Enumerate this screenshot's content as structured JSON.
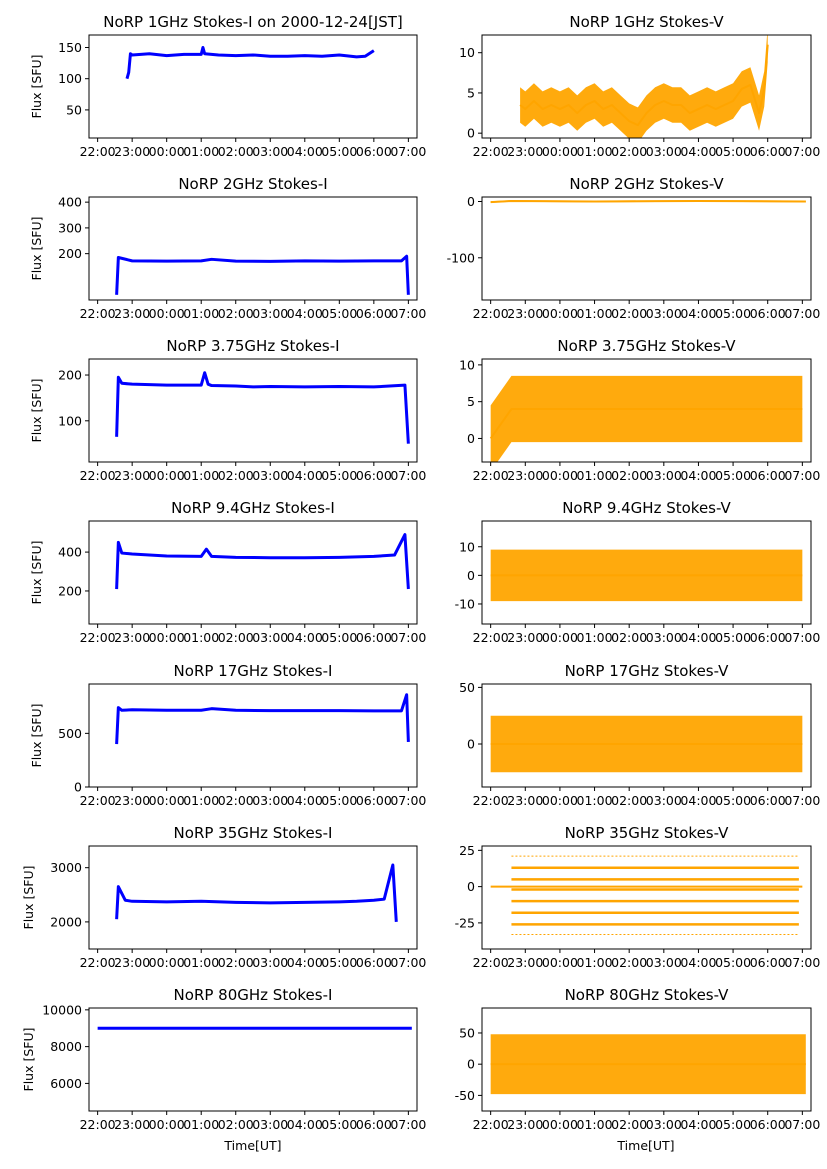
{
  "figure": {
    "xlabel": "Time[UT]",
    "x_ticks": [
      "22:00",
      "23:00",
      "00:00",
      "01:00",
      "02:00",
      "03:00",
      "04:00",
      "05:00",
      "06:00",
      "07:00"
    ],
    "colors": {
      "stokes_i": "#0000ff",
      "stokes_v": "#ffa500",
      "axes": "#000000"
    }
  },
  "chart_data": [
    {
      "type": "line",
      "title": "NoRP 1GHz Stokes-I on 2000-12-24[JST]",
      "ylabel": "Flux [SFU]",
      "xrange": [
        21.75,
        31.25
      ],
      "ylim": [
        5,
        170
      ],
      "yticks": [
        50,
        100,
        150
      ],
      "series": [
        {
          "color": "#0000ff",
          "x": [
            22.85,
            22.9,
            22.95,
            23.0,
            23.5,
            24.0,
            24.5,
            25.0,
            25.05,
            25.1,
            25.5,
            26.0,
            26.5,
            27.0,
            27.5,
            28.0,
            28.5,
            29.0,
            29.5,
            29.75,
            30.0
          ],
          "y": [
            100,
            110,
            140,
            138,
            140,
            137,
            139,
            139,
            150,
            140,
            138,
            137,
            138,
            136,
            136,
            137,
            136,
            138,
            135,
            136,
            145
          ]
        }
      ]
    },
    {
      "type": "line",
      "title": "NoRP 1GHz Stokes-V",
      "ylabel": "",
      "xrange": [
        21.75,
        31.25
      ],
      "ylim": [
        -0.6,
        12.2
      ],
      "yticks": [
        0,
        5,
        10
      ],
      "series": [
        {
          "color": "#ffa500",
          "x": [
            22.85,
            23.0,
            23.25,
            23.5,
            23.75,
            24.0,
            24.25,
            24.5,
            24.75,
            25.0,
            25.25,
            25.5,
            25.75,
            26.0,
            26.25,
            26.5,
            26.75,
            27.0,
            27.25,
            27.5,
            27.75,
            28.0,
            28.25,
            28.5,
            28.75,
            29.0,
            29.25,
            29.5,
            29.75,
            29.9,
            30.0
          ],
          "y": [
            3.5,
            3.0,
            4.0,
            3.0,
            3.5,
            3.0,
            3.5,
            2.5,
            3.5,
            4.0,
            3.0,
            3.5,
            2.5,
            1.5,
            1.0,
            2.5,
            3.5,
            4.0,
            3.5,
            3.5,
            2.5,
            3.0,
            3.5,
            3.0,
            3.5,
            4.0,
            5.5,
            6.0,
            2.5,
            5.5,
            11.0
          ]
        }
      ]
    },
    {
      "type": "line",
      "title": "NoRP 2GHz Stokes-I",
      "ylabel": "Flux [SFU]",
      "xrange": [
        21.75,
        31.25
      ],
      "ylim": [
        20,
        420
      ],
      "yticks": [
        200,
        300,
        400
      ],
      "series": [
        {
          "color": "#0000ff",
          "x": [
            22.55,
            22.6,
            23.0,
            24.0,
            25.0,
            25.3,
            26.0,
            27.0,
            28.0,
            29.0,
            30.0,
            30.8,
            30.95,
            31.0
          ],
          "y": [
            40,
            185,
            172,
            171,
            172,
            178,
            171,
            170,
            172,
            171,
            172,
            172,
            190,
            40
          ]
        }
      ]
    },
    {
      "type": "line",
      "title": "NoRP 2GHz Stokes-V",
      "ylabel": "",
      "xrange": [
        21.75,
        31.25
      ],
      "ylim": [
        -175,
        8
      ],
      "yticks": [
        0,
        -100
      ],
      "series": [
        {
          "color": "#ffa500",
          "x": [
            22.0,
            22.6,
            25.0,
            28.0,
            31.1
          ],
          "y": [
            -1,
            1,
            0,
            1,
            0
          ]
        }
      ]
    },
    {
      "type": "line",
      "title": "NoRP 3.75GHz Stokes-I",
      "ylabel": "Flux [SFU]",
      "xrange": [
        21.75,
        31.25
      ],
      "ylim": [
        10,
        235
      ],
      "yticks": [
        100,
        200
      ],
      "series": [
        {
          "color": "#0000ff",
          "x": [
            22.55,
            22.6,
            22.7,
            23.0,
            24.0,
            25.0,
            25.1,
            25.2,
            25.3,
            26.0,
            26.5,
            27.0,
            28.0,
            29.0,
            30.0,
            30.9,
            31.0
          ],
          "y": [
            65,
            195,
            182,
            180,
            178,
            178,
            205,
            180,
            177,
            176,
            174,
            175,
            174,
            175,
            174,
            178,
            50
          ]
        }
      ]
    },
    {
      "type": "line",
      "title": "NoRP 3.75GHz Stokes-V",
      "ylabel": "",
      "xrange": [
        21.75,
        31.25
      ],
      "ylim": [
        -3.2,
        10.8
      ],
      "yticks": [
        0,
        5,
        10
      ],
      "series": [
        {
          "color": "#ffa500",
          "x": [
            22.0,
            22.6,
            23.0,
            24.0,
            25.0,
            26.0,
            27.0,
            28.0,
            29.0,
            30.0,
            31.0
          ],
          "y": [
            0,
            4,
            4,
            4,
            4,
            4,
            4,
            4,
            4,
            4,
            4
          ]
        }
      ]
    },
    {
      "type": "line",
      "title": "NoRP 9.4GHz Stokes-I",
      "ylabel": "Flux [SFU]",
      "xrange": [
        21.75,
        31.25
      ],
      "ylim": [
        30,
        560
      ],
      "yticks": [
        200,
        400
      ],
      "series": [
        {
          "color": "#0000ff",
          "x": [
            22.55,
            22.6,
            22.7,
            23.0,
            24.0,
            25.0,
            25.15,
            25.3,
            26.0,
            27.0,
            28.0,
            29.0,
            30.0,
            30.6,
            30.9,
            31.0
          ],
          "y": [
            210,
            450,
            395,
            390,
            380,
            378,
            415,
            378,
            373,
            371,
            371,
            373,
            378,
            385,
            490,
            210
          ]
        }
      ]
    },
    {
      "type": "line",
      "title": "NoRP 9.4GHz Stokes-V",
      "ylabel": "",
      "xrange": [
        21.75,
        31.25
      ],
      "ylim": [
        -17,
        19
      ],
      "yticks": [
        -10,
        0,
        10
      ],
      "series": [
        {
          "color": "#ffa500",
          "x": [
            22.0,
            22.6,
            24.0,
            26.0,
            28.0,
            31.0
          ],
          "y": [
            0,
            0,
            0,
            0,
            0,
            0
          ]
        }
      ]
    },
    {
      "type": "line",
      "title": "NoRP 17GHz Stokes-I",
      "ylabel": "Flux [SFU]",
      "xrange": [
        21.75,
        31.25
      ],
      "ylim": [
        0,
        960
      ],
      "yticks": [
        0,
        500
      ],
      "series": [
        {
          "color": "#0000ff",
          "x": [
            22.55,
            22.6,
            22.7,
            23.0,
            24.0,
            25.0,
            25.3,
            26.0,
            27.0,
            28.0,
            29.0,
            30.0,
            30.8,
            30.95,
            31.0
          ],
          "y": [
            400,
            740,
            715,
            720,
            715,
            715,
            730,
            715,
            712,
            712,
            712,
            710,
            710,
            860,
            420
          ]
        }
      ]
    },
    {
      "type": "line",
      "title": "NoRP 17GHz Stokes-V",
      "ylabel": "",
      "xrange": [
        21.75,
        31.25
      ],
      "ylim": [
        -38,
        53
      ],
      "yticks": [
        0,
        50
      ],
      "series": [
        {
          "color": "#ffa500",
          "x": [
            22.0,
            22.6,
            24.0,
            26.0,
            28.0,
            31.0
          ],
          "y": [
            0,
            0,
            0,
            0,
            0,
            0
          ]
        }
      ]
    },
    {
      "type": "line",
      "title": "NoRP 35GHz Stokes-I",
      "ylabel": "Flux [SFU]",
      "xrange": [
        21.75,
        31.25
      ],
      "ylim": [
        1500,
        3400
      ],
      "yticks": [
        2000,
        3000
      ],
      "series": [
        {
          "color": "#0000ff",
          "x": [
            22.55,
            22.6,
            22.8,
            23.0,
            24.0,
            25.0,
            26.0,
            27.0,
            28.0,
            29.0,
            29.5,
            30.0,
            30.3,
            30.55,
            30.65
          ],
          "y": [
            2050,
            2650,
            2400,
            2380,
            2370,
            2380,
            2360,
            2350,
            2360,
            2370,
            2380,
            2400,
            2420,
            3050,
            2000
          ]
        }
      ]
    },
    {
      "type": "line",
      "title": "NoRP 35GHz Stokes-V",
      "ylabel": "",
      "xrange": [
        21.75,
        31.25
      ],
      "ylim": [
        -43,
        28
      ],
      "yticks": [
        -25,
        0,
        25
      ],
      "series": [
        {
          "color": "#ffa500",
          "x": [
            22.0,
            22.6,
            31.0
          ],
          "y": [
            0,
            0,
            0
          ]
        }
      ]
    },
    {
      "type": "line",
      "title": "NoRP 80GHz Stokes-I",
      "ylabel": "Flux [SFU]",
      "xrange": [
        21.75,
        31.25
      ],
      "ylim": [
        4500,
        10100
      ],
      "yticks": [
        6000,
        8000,
        10000
      ],
      "series": [
        {
          "color": "#0000ff",
          "x": [
            22.0,
            24.0,
            26.0,
            28.0,
            30.0,
            31.1
          ],
          "y": [
            9000,
            9000,
            9000,
            9000,
            9000,
            9000
          ]
        }
      ]
    },
    {
      "type": "line",
      "title": "NoRP 80GHz Stokes-V",
      "ylabel": "",
      "xrange": [
        21.75,
        31.25
      ],
      "ylim": [
        -75,
        90
      ],
      "yticks": [
        -50,
        0,
        50
      ],
      "series": [
        {
          "color": "#ffa500",
          "x": [
            22.0,
            24.0,
            26.0,
            28.0,
            30.0,
            31.1
          ],
          "y": [
            0,
            0,
            0,
            0,
            0,
            0
          ]
        }
      ]
    }
  ]
}
